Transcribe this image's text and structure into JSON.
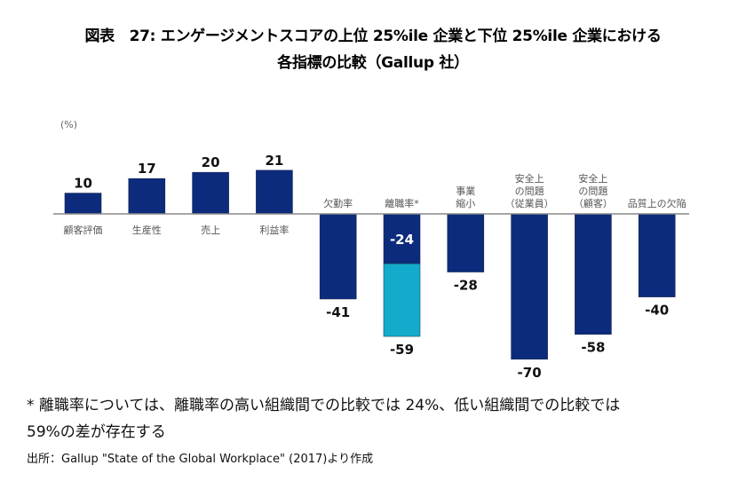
{
  "title_line1": "図表　27: エンゲージメントスコアの上位 25%ile 企業と下位 25%ile 企業における",
  "title_line2": "各指標の比較（Gallup 社）",
  "note_line1": "* 離職率については、離職率の高い組織間での比較では 24%、低い組織間での比較では",
  "note_line2": "59%の差が存在する",
  "source": "出所：Gallup \"State of the Global Workplace\" (2017)より作成",
  "colors": {
    "primary": "#0c2b7c",
    "secondary": "#13abcb",
    "axis": "#888888"
  },
  "chart_data": {
    "type": "bar",
    "unit_label": "(%)",
    "ylim": [
      -70,
      21
    ],
    "grid": false,
    "categories": [
      {
        "label": [
          "顧客評価"
        ],
        "value": 10,
        "side": "below"
      },
      {
        "label": [
          "生産性"
        ],
        "value": 17,
        "side": "below"
      },
      {
        "label": [
          "売上"
        ],
        "value": 20,
        "side": "below"
      },
      {
        "label": [
          "利益率"
        ],
        "value": 21,
        "side": "below"
      },
      {
        "label": [
          "欠勤率"
        ],
        "value": -41,
        "side": "above"
      },
      {
        "label": [
          "離職率*"
        ],
        "value": -59,
        "inner_value": -24,
        "side": "above"
      },
      {
        "label": [
          "事業",
          "縮小"
        ],
        "value": -28,
        "side": "above"
      },
      {
        "label": [
          "安全上",
          "の問題",
          "（従業員）"
        ],
        "value": -70,
        "side": "above"
      },
      {
        "label": [
          "安全上",
          "の問題",
          "（顧客）"
        ],
        "value": -58,
        "side": "above"
      },
      {
        "label": [
          "品質上の欠陥"
        ],
        "value": -40,
        "side": "above"
      }
    ],
    "value_labels": [
      "10",
      "17",
      "20",
      "21",
      "-41",
      "-59",
      "-28",
      "-70",
      "-58",
      "-40"
    ],
    "inner_value_label": "-24"
  }
}
